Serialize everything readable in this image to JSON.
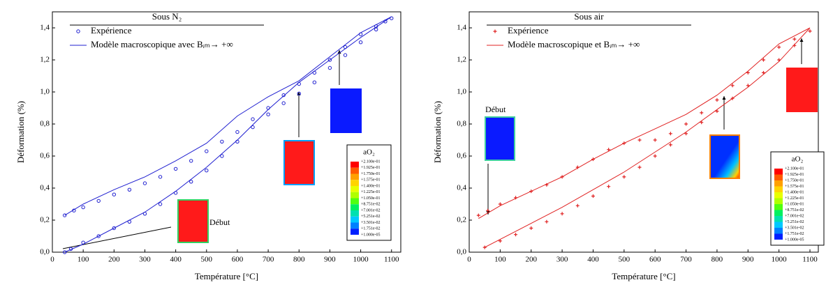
{
  "chart_data": [
    {
      "type": "line",
      "legend_title": "Sous N₂",
      "xlabel": "Température [°C]",
      "ylabel": "Déformation (%)",
      "xlim": [
        0,
        1130
      ],
      "ylim": [
        0,
        1.5
      ],
      "xticks": [
        0,
        100,
        200,
        300,
        400,
        500,
        600,
        700,
        800,
        900,
        1000,
        1100
      ],
      "yticks": [
        {
          "value": 0,
          "label": "0,0"
        },
        {
          "value": 0.2,
          "label": "0,2"
        },
        {
          "value": 0.4,
          "label": "0,4"
        },
        {
          "value": 0.6,
          "label": "0,6"
        },
        {
          "value": 0.8,
          "label": "0,8"
        },
        {
          "value": 1.0,
          "label": "1,0"
        },
        {
          "value": 1.2,
          "label": "1,2"
        },
        {
          "value": 1.4,
          "label": "1,4"
        }
      ],
      "series": [
        {
          "name": "Expérience",
          "color": "#1f1fd0",
          "marker": "circle",
          "x": [
            40,
            60,
            100,
            150,
            200,
            250,
            300,
            350,
            400,
            450,
            500,
            550,
            600,
            650,
            700,
            750,
            800,
            850,
            900,
            950,
            1000,
            1050,
            1100,
            1080,
            1050,
            1000,
            950,
            900,
            850,
            800,
            750,
            700,
            650,
            600,
            550,
            500,
            450,
            400,
            350,
            300,
            250,
            200,
            150,
            100,
            70,
            40
          ],
          "values": [
            0.0,
            0.02,
            0.06,
            0.1,
            0.15,
            0.19,
            0.24,
            0.3,
            0.37,
            0.44,
            0.51,
            0.6,
            0.69,
            0.78,
            0.86,
            0.93,
            0.99,
            1.06,
            1.15,
            1.23,
            1.31,
            1.39,
            1.46,
            1.44,
            1.41,
            1.36,
            1.28,
            1.2,
            1.12,
            1.05,
            0.98,
            0.9,
            0.83,
            0.75,
            0.69,
            0.63,
            0.57,
            0.52,
            0.47,
            0.43,
            0.39,
            0.36,
            0.32,
            0.28,
            0.26,
            0.23
          ]
        },
        {
          "name": "Modèle macroscopique avec Bᵢₘ→ +∞",
          "color": "#1f1fd0",
          "marker": null,
          "x": [
            40,
            100,
            200,
            300,
            400,
            500,
            600,
            700,
            800,
            900,
            1000,
            1100,
            1000,
            900,
            800,
            700,
            600,
            500,
            400,
            300,
            200,
            100,
            40
          ],
          "values": [
            0.0,
            0.05,
            0.15,
            0.25,
            0.38,
            0.53,
            0.7,
            0.89,
            1.06,
            1.2,
            1.34,
            1.47,
            1.37,
            1.22,
            1.07,
            0.97,
            0.85,
            0.68,
            0.57,
            0.47,
            0.39,
            0.3,
            0.23
          ]
        }
      ],
      "annotation": "Début",
      "colorbar": {
        "title": "aO₂",
        "colors": [
          "#ff0000",
          "#ff5a00",
          "#ffa000",
          "#ffd400",
          "#e8ff00",
          "#b0ff00",
          "#50ff10",
          "#00f060",
          "#00e0b0",
          "#00c8ff",
          "#0080ff",
          "#0020ff"
        ],
        "labels": [
          "+2.100e-01",
          "+1.925e-01",
          "+1.750e-01",
          "+1.575e-01",
          "+1.400e-01",
          "+1.225e-01",
          "+1.050e-01",
          "+8.751e-02",
          "+7.001e-02",
          "+5.251e-02",
          "+3.501e-02",
          "+1.751e-02",
          "+1.000e-05"
        ]
      }
    },
    {
      "type": "line",
      "legend_title": "Sous air",
      "xlabel": "Température [°C]",
      "ylabel": "Déformation (%)",
      "xlim": [
        0,
        1127
      ],
      "ylim": [
        0,
        1.5
      ],
      "xticks": [
        0,
        100,
        200,
        300,
        400,
        500,
        600,
        700,
        800,
        900,
        1000,
        1100
      ],
      "yticks": [
        {
          "value": 0,
          "label": "0,0"
        },
        {
          "value": 0.2,
          "label": "0,2"
        },
        {
          "value": 0.4,
          "label": "0,4"
        },
        {
          "value": 0.6,
          "label": "0,6"
        },
        {
          "value": 0.8,
          "label": "0,8"
        },
        {
          "value": 1.0,
          "label": "1,0"
        },
        {
          "value": 1.2,
          "label": "1,2"
        },
        {
          "value": 1.4,
          "label": "1,4"
        }
      ],
      "series": [
        {
          "name": "Expérience",
          "color": "#e02020",
          "marker": "plus",
          "x": [
            50,
            100,
            150,
            200,
            250,
            300,
            350,
            400,
            450,
            500,
            550,
            600,
            650,
            700,
            750,
            800,
            850,
            900,
            950,
            1000,
            1050,
            1100,
            1050,
            1000,
            950,
            900,
            850,
            800,
            750,
            700,
            650,
            600,
            550,
            500,
            450,
            400,
            350,
            300,
            250,
            200,
            150,
            100,
            60,
            30
          ],
          "values": [
            0.03,
            0.07,
            0.11,
            0.15,
            0.19,
            0.24,
            0.29,
            0.35,
            0.41,
            0.47,
            0.53,
            0.6,
            0.67,
            0.74,
            0.81,
            0.88,
            0.96,
            1.04,
            1.12,
            1.2,
            1.29,
            1.38,
            1.33,
            1.28,
            1.2,
            1.12,
            1.04,
            0.95,
            0.87,
            0.8,
            0.74,
            0.7,
            0.7,
            0.68,
            0.64,
            0.58,
            0.53,
            0.47,
            0.42,
            0.38,
            0.34,
            0.3,
            0.26,
            0.23
          ]
        },
        {
          "name": "Modèle macroscopique et Bᵢₘ→ +∞",
          "color": "#e02020",
          "marker": null,
          "x": [
            50,
            300,
            500,
            700,
            800,
            900,
            1000,
            1100,
            1000,
            900,
            800,
            700,
            600,
            500,
            400,
            300,
            200,
            100,
            30
          ],
          "values": [
            0.03,
            0.28,
            0.5,
            0.75,
            0.89,
            1.03,
            1.19,
            1.4,
            1.3,
            1.13,
            0.98,
            0.86,
            0.77,
            0.68,
            0.58,
            0.47,
            0.38,
            0.29,
            0.21
          ]
        }
      ],
      "annotation": "Début",
      "colorbar": {
        "title": "aO₂",
        "colors": [
          "#ff0000",
          "#ff5a00",
          "#ffa000",
          "#ffd400",
          "#e8ff00",
          "#b0ff00",
          "#50ff10",
          "#00f060",
          "#00e0b0",
          "#00c8ff",
          "#0080ff",
          "#0020ff"
        ],
        "labels": [
          "+2.100e-01",
          "+1.925e-01",
          "+1.750e-01",
          "+1.575e-01",
          "+1.400e-01",
          "+1.225e-01",
          "+1.050e-01",
          "+8.751e-02",
          "+7.001e-02",
          "+5.251e-02",
          "+3.501e-02",
          "+1.751e-02",
          "+1.000e-05"
        ]
      }
    }
  ]
}
